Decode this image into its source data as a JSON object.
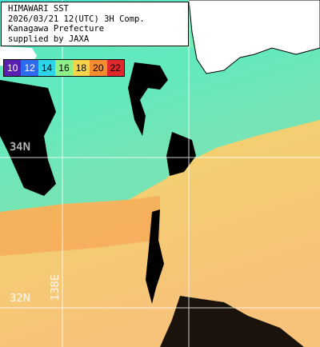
{
  "header": {
    "line1": "HIMAWARI SST",
    "line2": "2026/03/21 12(UTC) 3H Comp.",
    "line3": "Kanagawa Prefecture",
    "line4": "supplied by JAXA"
  },
  "legend": [
    {
      "label": "10",
      "color": "#5a1fb0"
    },
    {
      "label": "12",
      "color": "#2e6bf0"
    },
    {
      "label": "14",
      "color": "#2ed4e8"
    },
    {
      "label": "16",
      "color": "#8ef089"
    },
    {
      "label": "18",
      "color": "#f5d44a"
    },
    {
      "label": "20",
      "color": "#f58c2d"
    },
    {
      "label": "22",
      "color": "#e0282d"
    }
  ],
  "grid_labels": {
    "lat_34": "34N",
    "lat_32": "32N",
    "lon_138": "138E"
  },
  "colors": {
    "land": "#ffffff",
    "cloud": "#000000",
    "cool_water": "#3fe8c8",
    "warm_water": "#f7b560"
  }
}
